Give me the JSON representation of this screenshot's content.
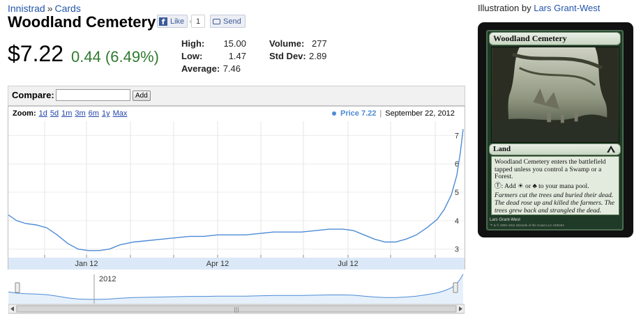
{
  "breadcrumb": {
    "set": "Innistrad",
    "separator": "»",
    "section": "Cards"
  },
  "card_name": "Woodland Cemetery",
  "social": {
    "like_label": "Like",
    "like_count": "1",
    "send_label": "Send"
  },
  "price": {
    "current": "$7.22",
    "change": "0.44 (6.49%)",
    "change_color": "#2f7a2f"
  },
  "stats": {
    "high_label": "High:",
    "high": "15.00",
    "low_label": "Low:",
    "low": "1.47",
    "average_label": "Average:",
    "average": "7.46",
    "volume_label": "Volume:",
    "volume": "277",
    "stddev_label": "Std Dev:",
    "stddev": "2.89"
  },
  "compare": {
    "label": "Compare:",
    "input_value": "",
    "add_label": "Add"
  },
  "zoom": {
    "label": "Zoom:",
    "options": [
      "1d",
      "5d",
      "1m",
      "3m",
      "6m",
      "1y",
      "Max"
    ]
  },
  "legend": {
    "series_label": "Price 7.22",
    "date": "September 22, 2012",
    "series_color": "#4c8bd6"
  },
  "chart_data": {
    "type": "line",
    "x_labels": [
      "Jan 12",
      "Apr 12",
      "Jul 12"
    ],
    "y_ticks": [
      "3",
      "4",
      "5",
      "6",
      "7"
    ],
    "ylim": [
      2.7,
      7.4
    ],
    "grid": true,
    "navigator_label": "2012",
    "series": [
      {
        "color": "#4c8bd6",
        "points": [
          [
            0,
            4.2
          ],
          [
            12,
            4.0
          ],
          [
            25,
            3.9
          ],
          [
            40,
            3.85
          ],
          [
            55,
            3.75
          ],
          [
            70,
            3.5
          ],
          [
            85,
            3.2
          ],
          [
            100,
            3.0
          ],
          [
            115,
            2.95
          ],
          [
            130,
            2.95
          ],
          [
            145,
            3.0
          ],
          [
            160,
            3.15
          ],
          [
            180,
            3.25
          ],
          [
            200,
            3.3
          ],
          [
            220,
            3.35
          ],
          [
            240,
            3.4
          ],
          [
            260,
            3.45
          ],
          [
            280,
            3.45
          ],
          [
            300,
            3.5
          ],
          [
            320,
            3.5
          ],
          [
            340,
            3.5
          ],
          [
            360,
            3.55
          ],
          [
            380,
            3.6
          ],
          [
            400,
            3.6
          ],
          [
            420,
            3.6
          ],
          [
            440,
            3.65
          ],
          [
            460,
            3.7
          ],
          [
            480,
            3.7
          ],
          [
            495,
            3.65
          ],
          [
            510,
            3.5
          ],
          [
            525,
            3.35
          ],
          [
            540,
            3.25
          ],
          [
            555,
            3.25
          ],
          [
            570,
            3.35
          ],
          [
            585,
            3.5
          ],
          [
            600,
            3.75
          ],
          [
            615,
            4.05
          ],
          [
            625,
            4.4
          ],
          [
            635,
            4.9
          ],
          [
            643,
            5.6
          ],
          [
            648,
            6.4
          ],
          [
            652,
            7.22
          ]
        ]
      }
    ]
  },
  "illustration": {
    "prefix": "Illustration by",
    "artist": "Lars Grant-West"
  },
  "card": {
    "title": "Woodland Cemetery",
    "type_line": "Land",
    "rules_1": "Woodland Cemetery enters the battlefield tapped unless you control a Swamp or a Forest.",
    "rules_2": "Ⓣ: Add ☀ or ♣ to your mana pool.",
    "flavor": "Farmers cut the trees and buried their dead. The dead rose up and killed the farmers. The trees grew back and strangled the dead.",
    "artist_line": "Lars Grant-West",
    "copyright": "™ & © 1993–2011 Wizards of the Coast LLC 249/264"
  }
}
